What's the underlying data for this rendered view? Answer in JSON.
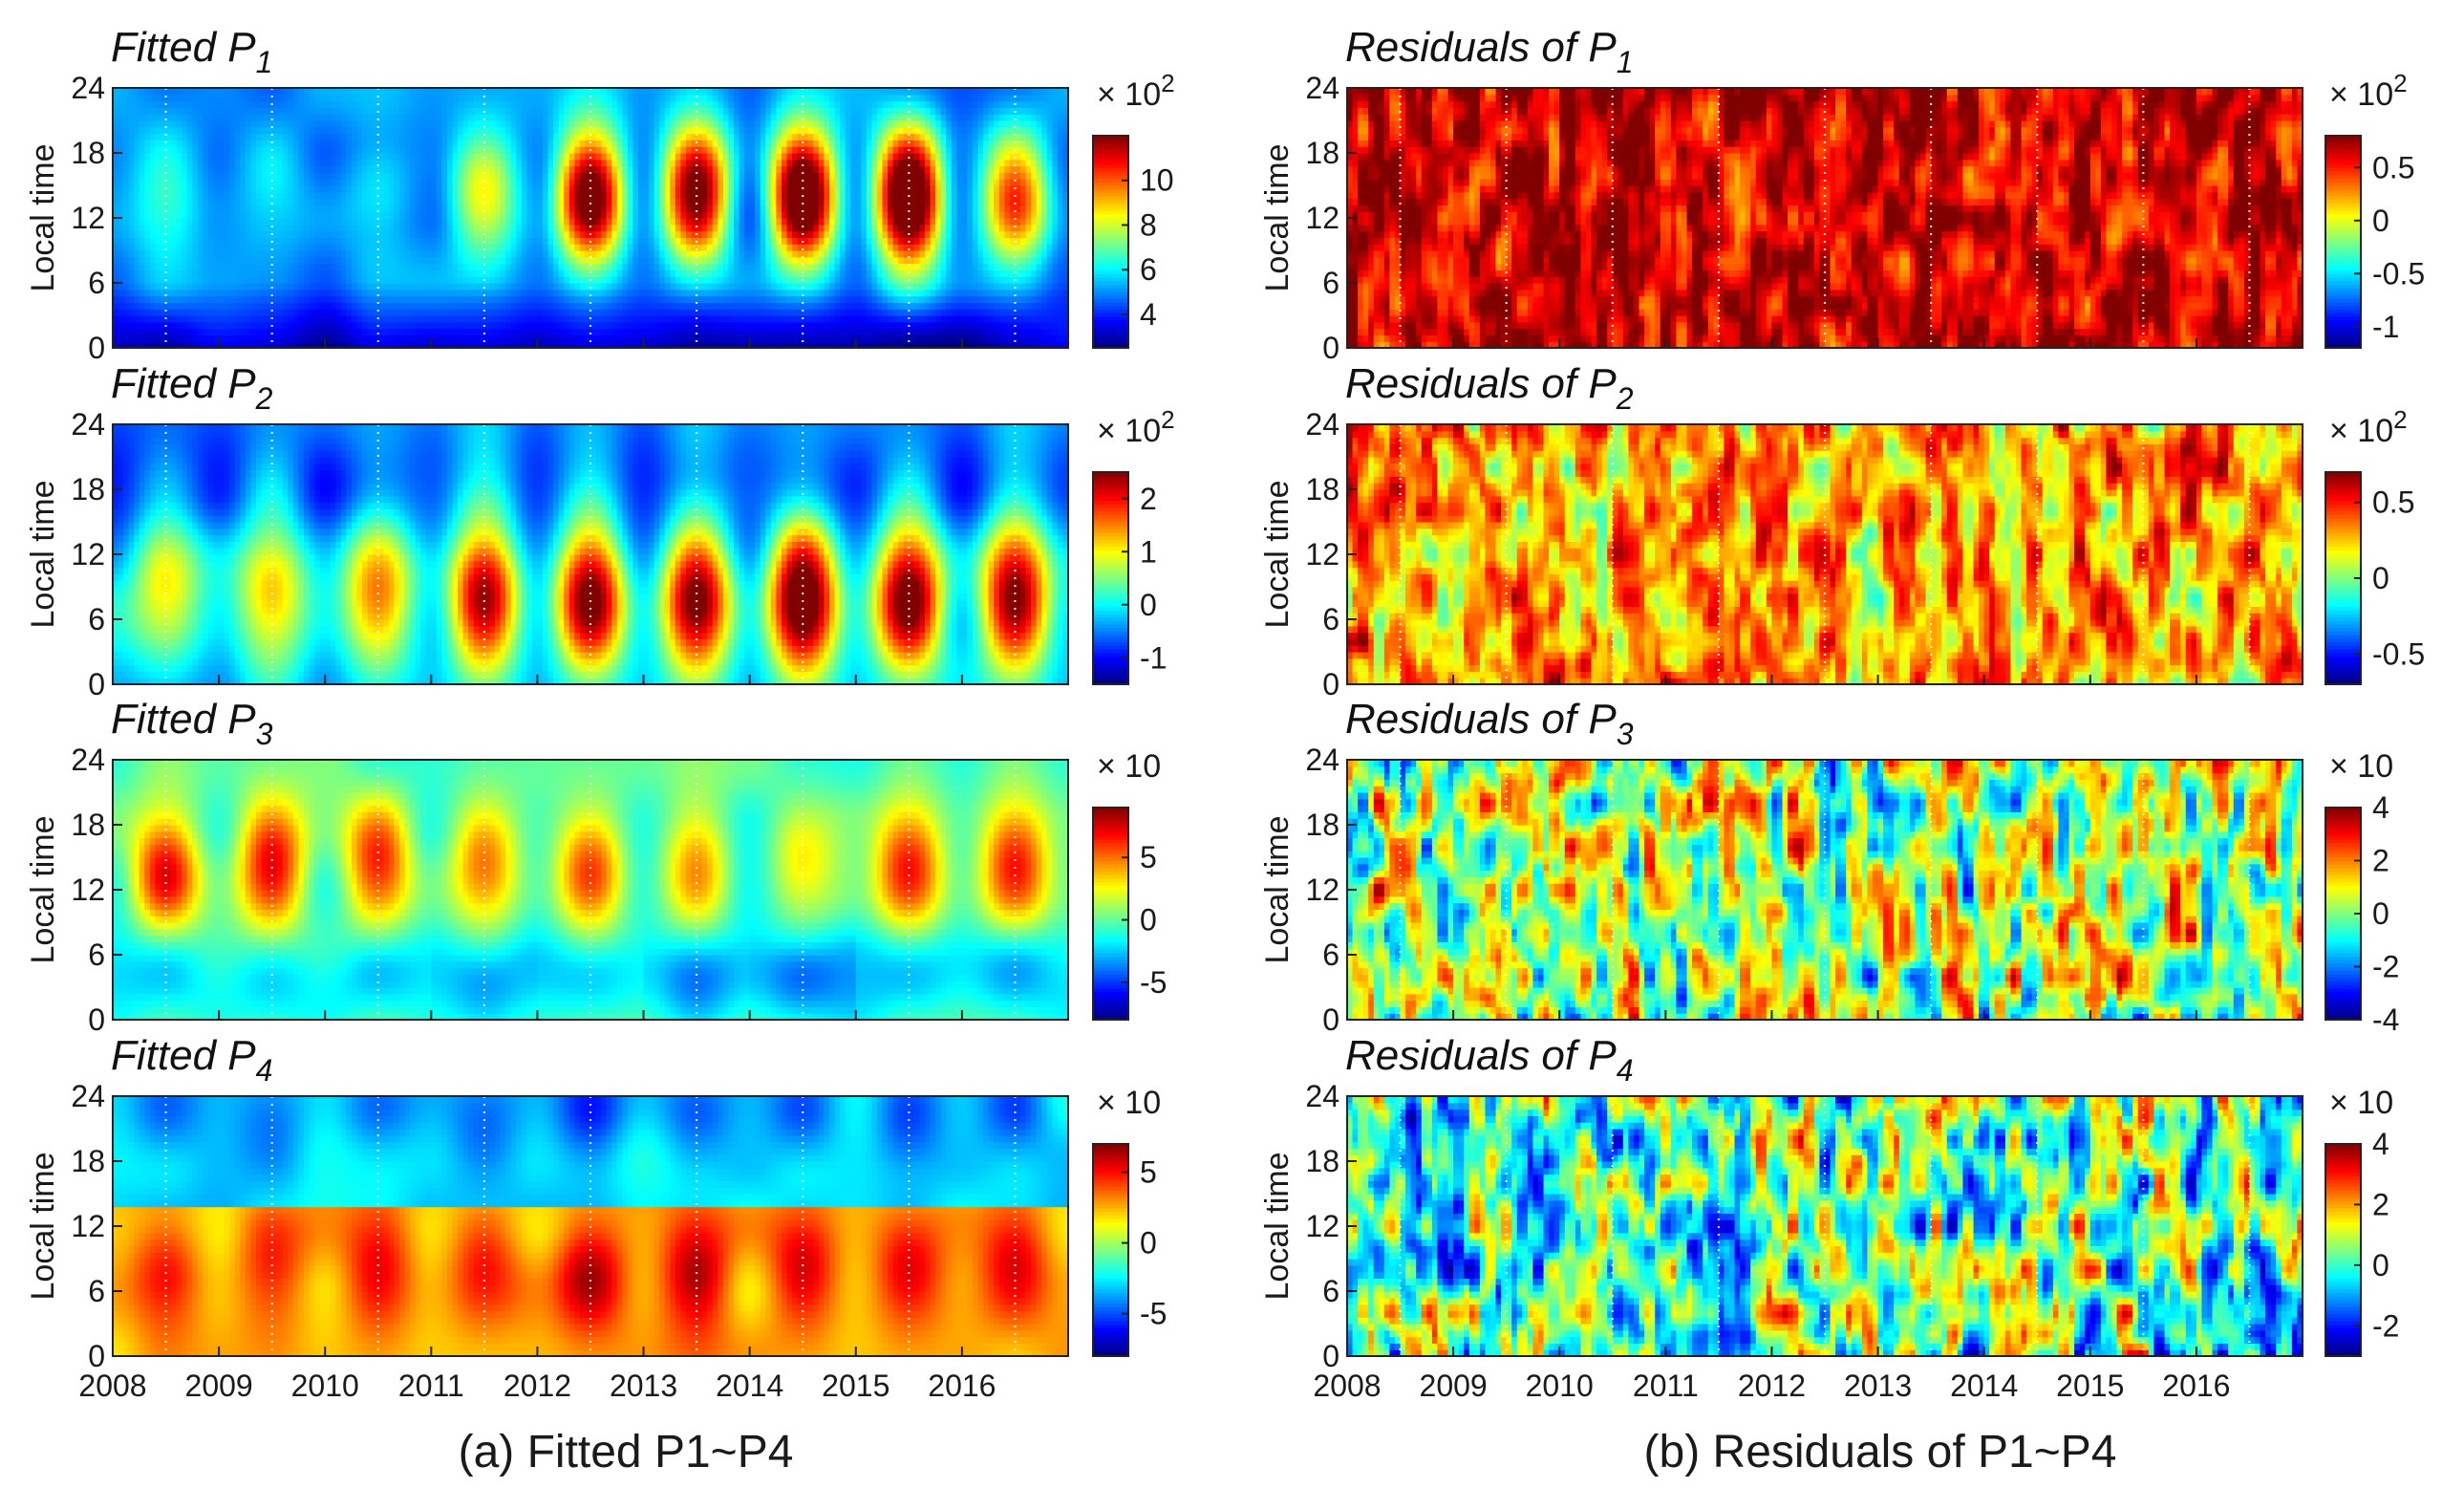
{
  "figure": {
    "subcaptions": [
      "(a) Fitted P1~P4",
      "(b) Residuals of P1~P4"
    ]
  },
  "colormap": "jet",
  "chart_data": [
    {
      "type": "heatmap",
      "column": "a",
      "row": 0,
      "title": {
        "prefix": "Fitted P",
        "sub": "1"
      },
      "ylabel": "Local time",
      "xlim": [
        2008,
        2017
      ],
      "ylim": [
        0,
        24
      ],
      "x_ticks": [
        2008,
        2009,
        2010,
        2011,
        2012,
        2013,
        2014,
        2015,
        2016
      ],
      "y_ticks": [
        0,
        6,
        12,
        18,
        24
      ],
      "colorbar": {
        "multiplier_base": "10",
        "multiplier_exp": "2",
        "range": [
          2.5,
          12
        ],
        "ticks": [
          4,
          6,
          8,
          10
        ]
      },
      "pattern": "fitted",
      "seed": 1,
      "year_peak": [
        0.15,
        0.12,
        0.15,
        0.45,
        0.9,
        0.85,
        1.0,
        1.0,
        0.6
      ],
      "diurnal_shape": "peak-14h"
    },
    {
      "type": "heatmap",
      "column": "a",
      "row": 1,
      "title": {
        "prefix": "Fitted P",
        "sub": "2"
      },
      "ylabel": "Local time",
      "xlim": [
        2008,
        2017
      ],
      "ylim": [
        0,
        24
      ],
      "x_ticks": [
        2008,
        2009,
        2010,
        2011,
        2012,
        2013,
        2014,
        2015,
        2016
      ],
      "y_ticks": [
        0,
        6,
        12,
        18,
        24
      ],
      "colorbar": {
        "multiplier_base": "10",
        "multiplier_exp": "2",
        "range": [
          -1.5,
          2.5
        ],
        "ticks": [
          -1,
          0,
          1,
          2
        ]
      },
      "pattern": "fitted",
      "seed": 2,
      "year_peak": [
        0.35,
        0.45,
        0.55,
        0.9,
        0.95,
        0.95,
        0.98,
        0.95,
        0.85
      ],
      "diurnal_shape": "peak-8h"
    },
    {
      "type": "heatmap",
      "column": "a",
      "row": 2,
      "title": {
        "prefix": "Fitted P",
        "sub": "3"
      },
      "ylabel": "Local time",
      "xlim": [
        2008,
        2017
      ],
      "ylim": [
        0,
        24
      ],
      "x_ticks": [
        2008,
        2009,
        2010,
        2011,
        2012,
        2013,
        2014,
        2015,
        2016
      ],
      "y_ticks": [
        0,
        6,
        12,
        18,
        24
      ],
      "colorbar": {
        "multiplier_base": "10",
        "multiplier_exp": "",
        "range": [
          -8,
          9
        ],
        "ticks": [
          -5,
          0,
          5
        ]
      },
      "pattern": "fitted",
      "seed": 3,
      "year_peak": [
        0.95,
        0.95,
        0.9,
        0.75,
        0.85,
        0.6,
        0.5,
        0.9,
        0.9
      ],
      "diurnal_shape": "peak-14h-trough-5h"
    },
    {
      "type": "heatmap",
      "column": "a",
      "row": 3,
      "title": {
        "prefix": "Fitted P",
        "sub": "4"
      },
      "ylabel": "Local time",
      "xlim": [
        2008,
        2017
      ],
      "ylim": [
        0,
        24
      ],
      "x_ticks": [
        2008,
        2009,
        2010,
        2011,
        2012,
        2013,
        2014,
        2015,
        2016
      ],
      "y_ticks": [
        0,
        6,
        12,
        18,
        24
      ],
      "colorbar": {
        "multiplier_base": "10",
        "multiplier_exp": "",
        "range": [
          -8,
          7
        ],
        "ticks": [
          -5,
          0,
          5
        ]
      },
      "pattern": "fitted",
      "seed": 4,
      "year_peak": [
        0.7,
        0.65,
        0.7,
        0.75,
        0.95,
        0.95,
        1.0,
        1.0,
        0.9
      ],
      "diurnal_shape": "band-0-14h"
    },
    {
      "type": "heatmap",
      "column": "b",
      "row": 0,
      "title": {
        "prefix": "Residuals of P",
        "sub": "1"
      },
      "ylabel": "Local time",
      "xlim": [
        2008,
        2017
      ],
      "ylim": [
        0,
        24
      ],
      "x_ticks": [
        2008,
        2009,
        2010,
        2011,
        2012,
        2013,
        2014,
        2015,
        2016
      ],
      "y_ticks": [
        0,
        6,
        12,
        18,
        24
      ],
      "colorbar": {
        "multiplier_base": "10",
        "multiplier_exp": "2",
        "range": [
          -1.2,
          0.8
        ],
        "ticks": [
          -1,
          -0.5,
          0,
          0.5
        ]
      },
      "pattern": "residual",
      "seed": 11,
      "bias": 0.42,
      "noise": 0.22
    },
    {
      "type": "heatmap",
      "column": "b",
      "row": 1,
      "title": {
        "prefix": "Residuals of P",
        "sub": "2"
      },
      "ylabel": "Local time",
      "xlim": [
        2008,
        2017
      ],
      "ylim": [
        0,
        24
      ],
      "x_ticks": [
        2008,
        2009,
        2010,
        2011,
        2012,
        2013,
        2014,
        2015,
        2016
      ],
      "y_ticks": [
        0,
        6,
        12,
        18,
        24
      ],
      "colorbar": {
        "multiplier_base": "10",
        "multiplier_exp": "2",
        "range": [
          -0.7,
          0.7
        ],
        "ticks": [
          -0.5,
          0,
          0.5
        ]
      },
      "pattern": "residual",
      "seed": 12,
      "bias": 0.22,
      "noise": 0.28
    },
    {
      "type": "heatmap",
      "column": "b",
      "row": 2,
      "title": {
        "prefix": "Residuals of P",
        "sub": "3"
      },
      "ylabel": "Local time",
      "xlim": [
        2008,
        2017
      ],
      "ylim": [
        0,
        24
      ],
      "x_ticks": [
        2008,
        2009,
        2010,
        2011,
        2012,
        2013,
        2014,
        2015,
        2016
      ],
      "y_ticks": [
        0,
        6,
        12,
        18,
        24
      ],
      "colorbar": {
        "multiplier_base": "10",
        "multiplier_exp": "",
        "range": [
          -4,
          4
        ],
        "ticks": [
          -4,
          -2,
          0,
          2,
          4
        ]
      },
      "pattern": "residual",
      "seed": 13,
      "bias": 0.04,
      "noise": 0.4
    },
    {
      "type": "heatmap",
      "column": "b",
      "row": 3,
      "title": {
        "prefix": "Residuals of P",
        "sub": "4"
      },
      "ylabel": "Local time",
      "xlim": [
        2008,
        2017
      ],
      "ylim": [
        0,
        24
      ],
      "x_ticks": [
        2008,
        2009,
        2010,
        2011,
        2012,
        2013,
        2014,
        2015,
        2016
      ],
      "y_ticks": [
        0,
        6,
        12,
        18,
        24
      ],
      "colorbar": {
        "multiplier_base": "10",
        "multiplier_exp": "",
        "range": [
          -3,
          4
        ],
        "ticks": [
          -2,
          0,
          2,
          4
        ]
      },
      "pattern": "residual",
      "seed": 14,
      "bias": -0.05,
      "noise": 0.42
    }
  ]
}
